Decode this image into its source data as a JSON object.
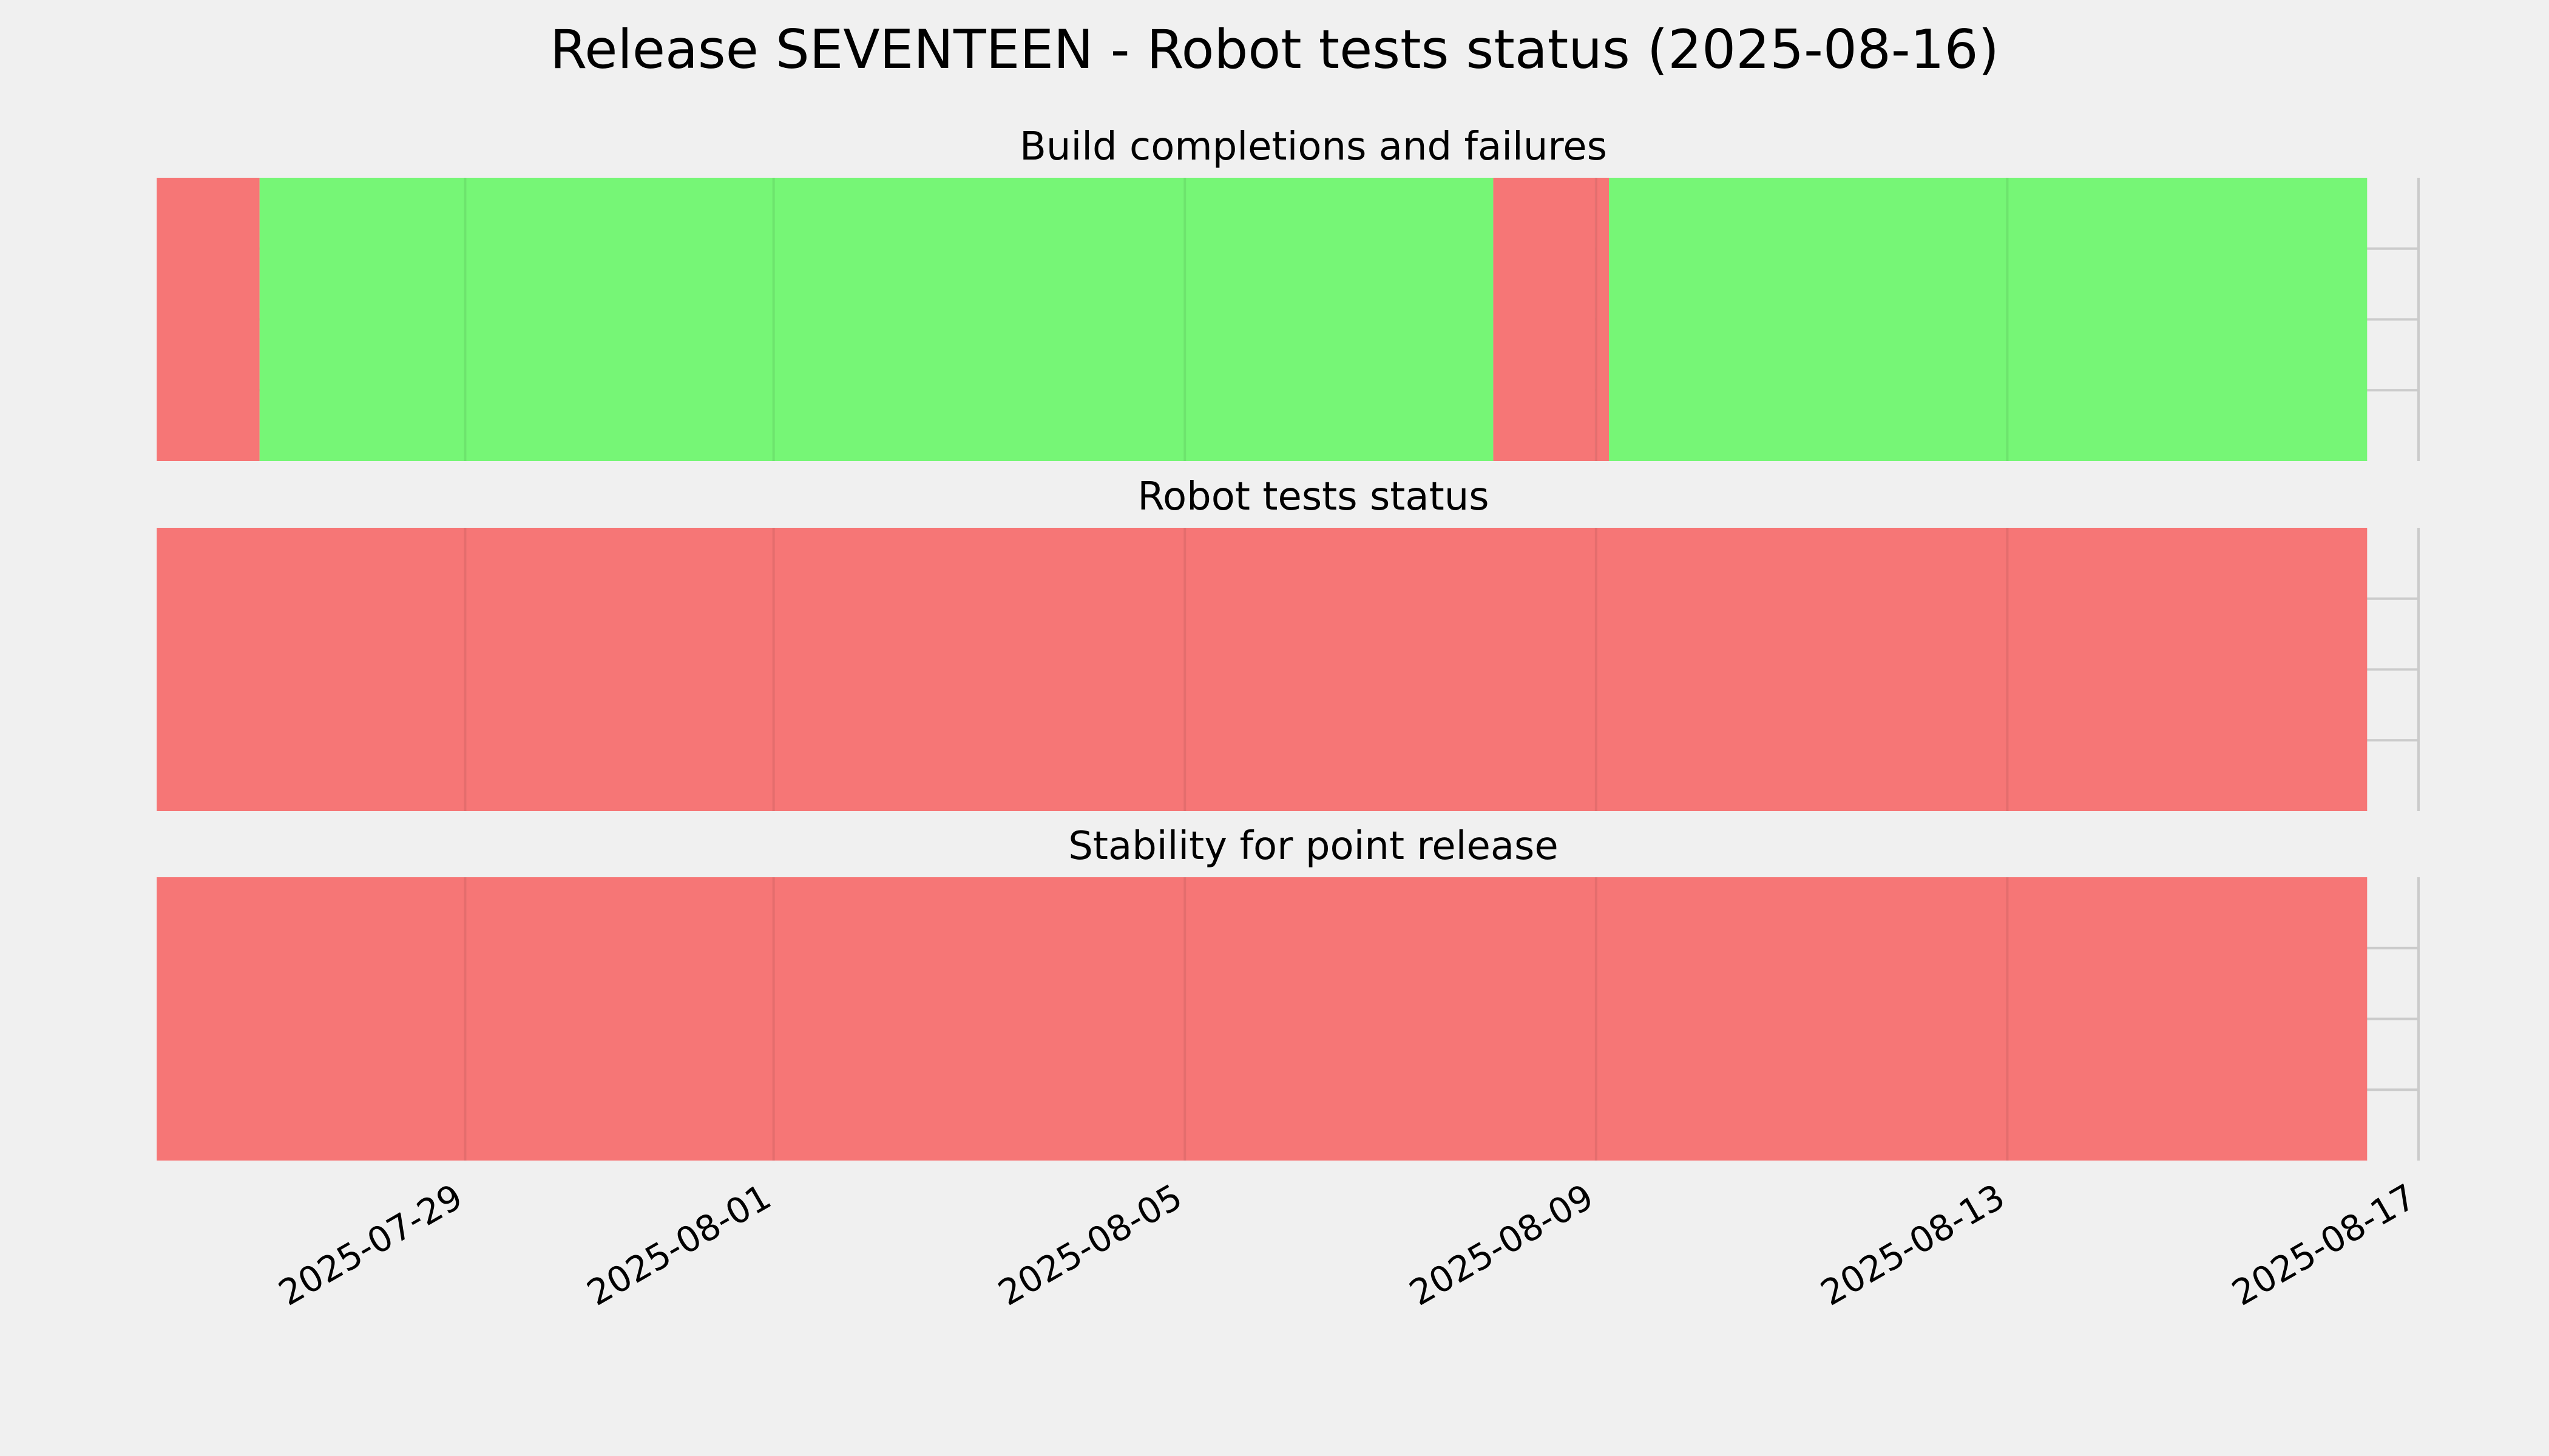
{
  "chart_data": {
    "type": "timeline",
    "title": "Release SEVENTEEN - Robot tests status (2025-08-16)",
    "x_axis": {
      "type": "date",
      "range": [
        "2025-07-26T12:00",
        "2025-08-17T00:00"
      ],
      "tick_labels": [
        "2025-07-29",
        "2025-08-01",
        "2025-08-05",
        "2025-08-09",
        "2025-08-13",
        "2025-08-17"
      ],
      "tick_label_rotation": 30
    },
    "grid": true,
    "colors": {
      "success": "#76f676",
      "failure": "#f67676",
      "background": "#f0f0f0",
      "grid": "#cbcbcb"
    },
    "panels": [
      {
        "title": "Build completions and failures",
        "segments": [
          {
            "start": "2025-07-26T00:00",
            "end": "2025-07-27T00:00",
            "status": "failure"
          },
          {
            "start": "2025-07-27T00:00",
            "end": "2025-08-08T00:00",
            "status": "success"
          },
          {
            "start": "2025-08-08T00:00",
            "end": "2025-08-09T00:00",
            "status": "failure"
          },
          {
            "start": "2025-08-09T00:00",
            "end": "2025-08-09T03:00",
            "status": "failure"
          },
          {
            "start": "2025-08-09T03:00",
            "end": "2025-08-16T12:00",
            "status": "success"
          }
        ]
      },
      {
        "title": "Robot tests status",
        "segments": [
          {
            "start": "2025-07-26T00:00",
            "end": "2025-08-16T12:00",
            "status": "failure"
          }
        ]
      },
      {
        "title": "Stability for point release",
        "segments": [
          {
            "start": "2025-07-26T00:00",
            "end": "2025-08-16T12:00",
            "status": "failure"
          }
        ]
      }
    ]
  }
}
